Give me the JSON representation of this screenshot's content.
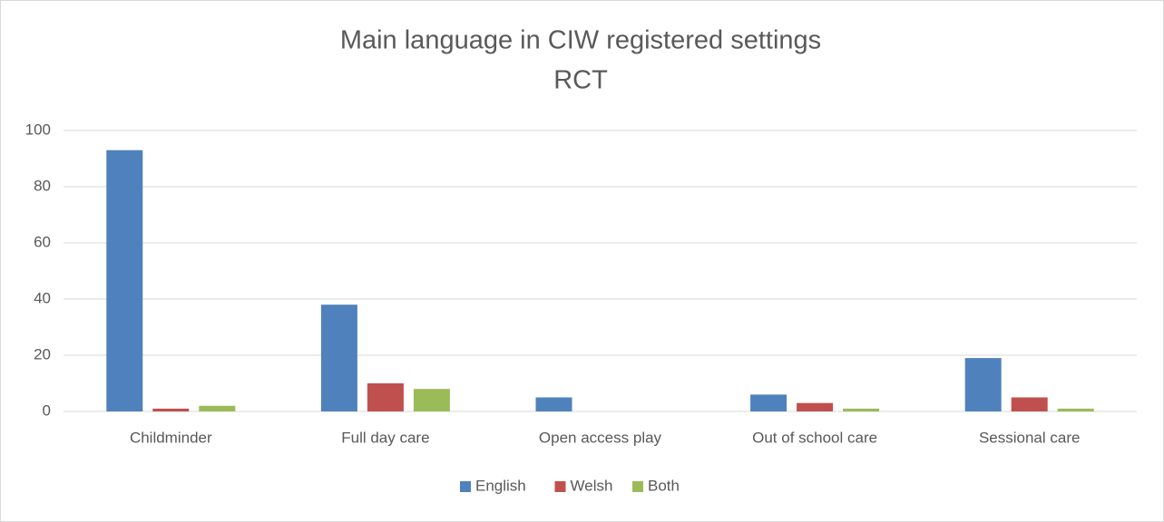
{
  "chart_data": {
    "type": "bar",
    "title": "Main language in CIW registered settings",
    "subtitle": "RCT",
    "categories": [
      "Childminder",
      "Full day care",
      "Open access play",
      "Out of school care",
      "Sessional care"
    ],
    "series": [
      {
        "name": "English",
        "color": "#4f81bd",
        "values": [
          93,
          38,
          5,
          6,
          19
        ]
      },
      {
        "name": "Welsh",
        "color": "#c0504d",
        "values": [
          1,
          10,
          0,
          3,
          5
        ]
      },
      {
        "name": "Both",
        "color": "#9bbb59",
        "values": [
          2,
          8,
          0,
          1,
          1
        ]
      }
    ],
    "ylim": [
      0,
      100
    ],
    "yticks": [
      0,
      20,
      40,
      60,
      80,
      100
    ],
    "grid": true,
    "legend": "bottom"
  }
}
